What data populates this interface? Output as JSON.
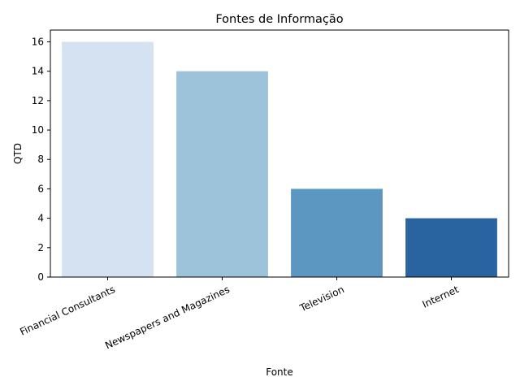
{
  "chart_data": {
    "type": "bar",
    "title": "Fontes de Informação",
    "xlabel": "Fonte",
    "ylabel": "QTD",
    "categories": [
      "Financial Consultants",
      "Newspapers and Magazines",
      "Television",
      "Internet"
    ],
    "values": [
      16,
      14,
      6,
      4
    ],
    "colors": [
      "#d4e2f1",
      "#9cc3d9",
      "#5b97c0",
      "#2a64a0"
    ],
    "ylim": [
      0,
      16.8
    ],
    "yticks": [
      0,
      2,
      4,
      6,
      8,
      10,
      12,
      14,
      16
    ],
    "xtick_rotation": -25,
    "grid": false,
    "legend": false
  }
}
